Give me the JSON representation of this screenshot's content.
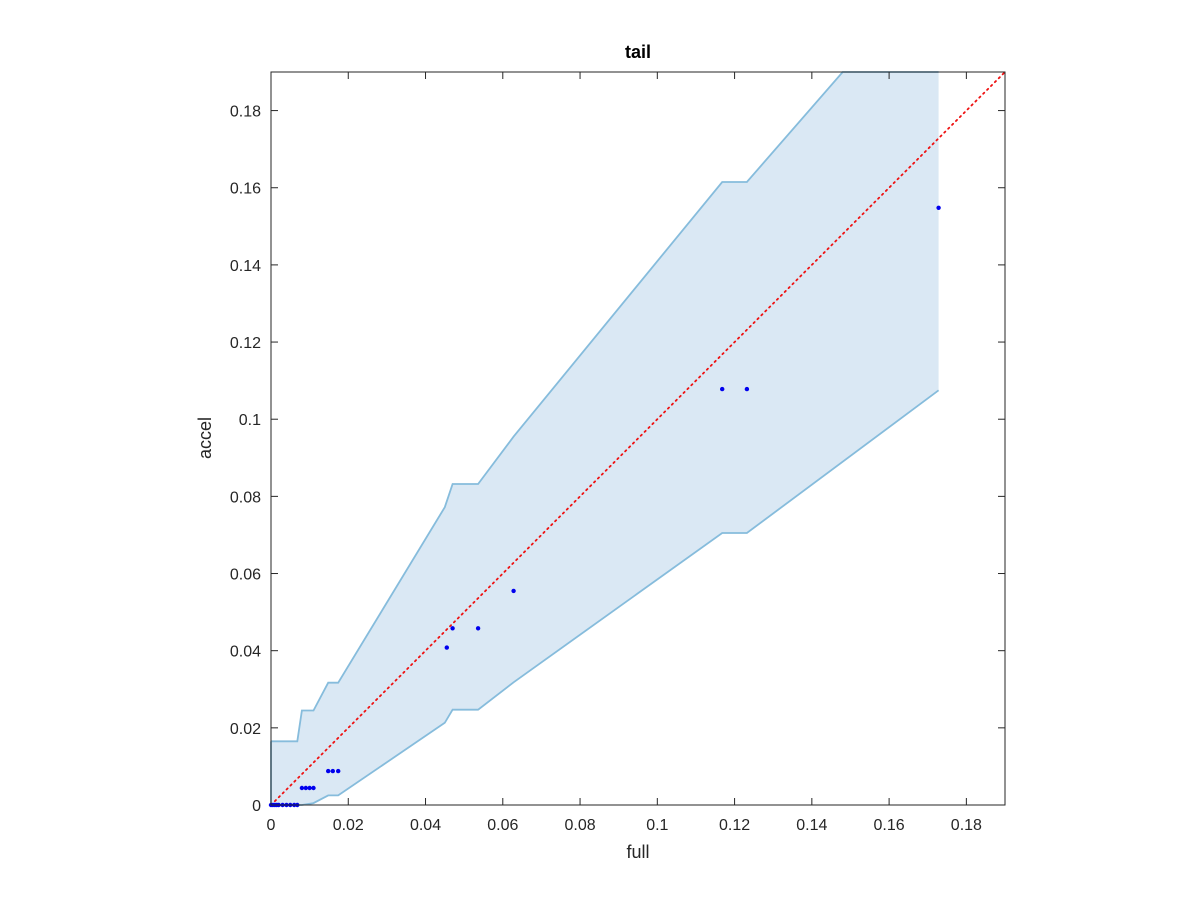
{
  "chart_data": {
    "type": "scatter",
    "title": "tail",
    "xlabel": "full",
    "ylabel": "accel",
    "xlim": [
      0,
      0.19
    ],
    "ylim": [
      0,
      0.19
    ],
    "xticks": [
      "0",
      "0.02",
      "0.04",
      "0.06",
      "0.08",
      "0.1",
      "0.12",
      "0.14",
      "0.16",
      "0.18"
    ],
    "yticks": [
      "0",
      "0.02",
      "0.04",
      "0.06",
      "0.08",
      "0.1",
      "0.12",
      "0.14",
      "0.16",
      "0.18"
    ],
    "grid": false,
    "points": [
      {
        "x": 0.0,
        "y": 0.0
      },
      {
        "x": 0.0005,
        "y": 0.0
      },
      {
        "x": 0.001,
        "y": 0.0
      },
      {
        "x": 0.0015,
        "y": 0.0
      },
      {
        "x": 0.002,
        "y": 0.0
      },
      {
        "x": 0.003,
        "y": 0.0
      },
      {
        "x": 0.004,
        "y": 0.0
      },
      {
        "x": 0.005,
        "y": 0.0
      },
      {
        "x": 0.006,
        "y": 0.0
      },
      {
        "x": 0.0068,
        "y": 0.0
      },
      {
        "x": 0.008,
        "y": 0.0044
      },
      {
        "x": 0.009,
        "y": 0.0044
      },
      {
        "x": 0.01,
        "y": 0.0044
      },
      {
        "x": 0.011,
        "y": 0.0044
      },
      {
        "x": 0.0148,
        "y": 0.0088
      },
      {
        "x": 0.016,
        "y": 0.0088
      },
      {
        "x": 0.0174,
        "y": 0.0088
      },
      {
        "x": 0.0455,
        "y": 0.0408
      },
      {
        "x": 0.047,
        "y": 0.0458
      },
      {
        "x": 0.0536,
        "y": 0.0458
      },
      {
        "x": 0.0628,
        "y": 0.0555
      },
      {
        "x": 0.1168,
        "y": 0.1078
      },
      {
        "x": 0.1232,
        "y": 0.1078
      },
      {
        "x": 0.1728,
        "y": 0.1548
      }
    ],
    "band_upper": [
      [
        0,
        0.0165
      ],
      [
        0.0068,
        0.0165
      ],
      [
        0.008,
        0.0245
      ],
      [
        0.011,
        0.0245
      ],
      [
        0.0148,
        0.0317
      ],
      [
        0.0174,
        0.0317
      ],
      [
        0.045,
        0.0772
      ],
      [
        0.047,
        0.0832
      ],
      [
        0.0536,
        0.0832
      ],
      [
        0.0628,
        0.0955
      ],
      [
        0.1168,
        0.1615
      ],
      [
        0.1232,
        0.1615
      ],
      [
        0.148,
        0.19
      ],
      [
        0.1728,
        0.19
      ]
    ],
    "band_lower": [
      [
        0.1728,
        0.1075
      ],
      [
        0.1232,
        0.0705
      ],
      [
        0.1168,
        0.0705
      ],
      [
        0.0628,
        0.0318
      ],
      [
        0.0536,
        0.0247
      ],
      [
        0.047,
        0.0247
      ],
      [
        0.045,
        0.0213
      ],
      [
        0.0174,
        0.0025
      ],
      [
        0.0148,
        0.0025
      ],
      [
        0.011,
        0.0005
      ],
      [
        0.008,
        0.0
      ],
      [
        0,
        0.0
      ]
    ],
    "reference_line": {
      "from": [
        0,
        0
      ],
      "to": [
        0.19,
        0.19
      ],
      "style": "dotted"
    },
    "colors": {
      "points": "#0000ee",
      "band_fill": "#dae8f4",
      "band_edge": "#86bcdc",
      "reference_line": "#ee1111",
      "axes": "#262626"
    }
  }
}
